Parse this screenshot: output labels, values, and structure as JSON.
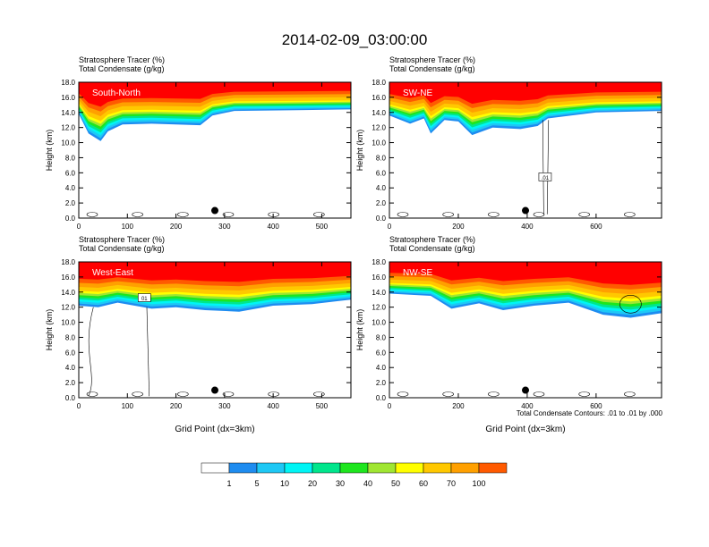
{
  "title": "2014-02-09_03:00:00",
  "colors": {
    "levels": [
      "#ffffff",
      "#1e8cf0",
      "#1ec8f5",
      "#00f5f5",
      "#00e68c",
      "#1ee61e",
      "#a0e632",
      "#ffff00",
      "#ffc800",
      "#ffa000",
      "#ff5a00",
      "#ff0000"
    ],
    "panel_label": "#ffffff",
    "contour": "#000000"
  },
  "colorbar": {
    "labels": [
      "1",
      "5",
      "10",
      "20",
      "30",
      "40",
      "50",
      "60",
      "70",
      "100"
    ]
  },
  "contour_note": "Total Condensate Contours: .01 to .01 by .000",
  "chart_data": [
    {
      "type": "heatmap",
      "subtitle_line1": "Stratosphere Tracer   (%)",
      "subtitle_line2": "Total Condensate   (g/kg)",
      "panel_label": "South-North",
      "ylabel": "Height (km)",
      "xlabel": "",
      "xlim": [
        0,
        560
      ],
      "ylim": [
        0,
        18
      ],
      "xticks": [
        0,
        100,
        200,
        300,
        400,
        500
      ],
      "xticklabels": [
        "0",
        "100",
        "200",
        "300",
        "400",
        "500"
      ],
      "yticks": [
        0,
        2,
        4,
        6,
        8,
        10,
        12,
        14,
        16,
        18
      ],
      "yticklabels": [
        "0.0",
        "2.0",
        "4.0",
        "6.0",
        "8.0",
        "10.0",
        "12.0",
        "14.0",
        "16.0",
        "18.0"
      ],
      "marker_x": 280,
      "marker_y": 1.0,
      "contour_label": "",
      "profile": [
        {
          "x": 0,
          "base": 13.8
        },
        {
          "x": 20,
          "base": 11.2
        },
        {
          "x": 45,
          "base": 10.2
        },
        {
          "x": 60,
          "base": 11.5
        },
        {
          "x": 90,
          "base": 12.4
        },
        {
          "x": 150,
          "base": 12.5
        },
        {
          "x": 250,
          "base": 12.3
        },
        {
          "x": 275,
          "base": 13.6
        },
        {
          "x": 320,
          "base": 14.2
        },
        {
          "x": 450,
          "base": 14.3
        },
        {
          "x": 560,
          "base": 14.4
        }
      ]
    },
    {
      "type": "heatmap",
      "subtitle_line1": "Stratosphere Tracer   (%)",
      "subtitle_line2": "Total Condensate   (g/kg)",
      "panel_label": "SW-NE",
      "ylabel": "Height (km)",
      "xlabel": "",
      "xlim": [
        0,
        790
      ],
      "ylim": [
        0,
        18
      ],
      "xticks": [
        0,
        200,
        400,
        600
      ],
      "xticklabels": [
        "0",
        "200",
        "400",
        "600"
      ],
      "yticks": [
        0,
        2,
        4,
        6,
        8,
        10,
        12,
        14,
        16,
        18
      ],
      "yticklabels": [
        "0.0",
        "2.0",
        "4.0",
        "6.0",
        "8.0",
        "10.0",
        "12.0",
        "14.0",
        "16.0",
        "18.0"
      ],
      "marker_x": 395,
      "marker_y": 1.0,
      "contour_label": ".01",
      "profile": [
        {
          "x": 0,
          "base": 13.6
        },
        {
          "x": 60,
          "base": 12.5
        },
        {
          "x": 100,
          "base": 13.2
        },
        {
          "x": 120,
          "base": 11.2
        },
        {
          "x": 160,
          "base": 13.0
        },
        {
          "x": 200,
          "base": 12.8
        },
        {
          "x": 240,
          "base": 11.0
        },
        {
          "x": 300,
          "base": 12.0
        },
        {
          "x": 380,
          "base": 11.8
        },
        {
          "x": 430,
          "base": 12.2
        },
        {
          "x": 460,
          "base": 13.2
        },
        {
          "x": 600,
          "base": 14.0
        },
        {
          "x": 790,
          "base": 14.2
        }
      ]
    },
    {
      "type": "heatmap",
      "subtitle_line1": "Stratosphere Tracer   (%)",
      "subtitle_line2": "Total Condensate   (g/kg)",
      "panel_label": "West-East",
      "ylabel": "Height (km)",
      "xlabel": "Grid Point (dx=3km)",
      "xlim": [
        0,
        560
      ],
      "ylim": [
        0,
        18
      ],
      "xticks": [
        0,
        100,
        200,
        300,
        400,
        500
      ],
      "xticklabels": [
        "0",
        "100",
        "200",
        "300",
        "400",
        "500"
      ],
      "yticks": [
        0,
        2,
        4,
        6,
        8,
        10,
        12,
        14,
        16,
        18
      ],
      "yticklabels": [
        "0.0",
        "2.0",
        "4.0",
        "6.0",
        "8.0",
        "10.0",
        "12.0",
        "14.0",
        "16.0",
        "18.0"
      ],
      "marker_x": 280,
      "marker_y": 1.0,
      "contour_label": "01",
      "profile": [
        {
          "x": 0,
          "base": 12.2
        },
        {
          "x": 40,
          "base": 12.0
        },
        {
          "x": 80,
          "base": 12.6
        },
        {
          "x": 150,
          "base": 11.8
        },
        {
          "x": 200,
          "base": 12.0
        },
        {
          "x": 260,
          "base": 11.6
        },
        {
          "x": 330,
          "base": 11.4
        },
        {
          "x": 400,
          "base": 12.2
        },
        {
          "x": 480,
          "base": 12.4
        },
        {
          "x": 560,
          "base": 13.0
        }
      ]
    },
    {
      "type": "heatmap",
      "subtitle_line1": "Stratosphere Tracer   (%)",
      "subtitle_line2": "Total Condensate   (g/kg)",
      "panel_label": "NW-SE",
      "ylabel": "Height (km)",
      "xlabel": "Grid Point (dx=3km)",
      "xlim": [
        0,
        790
      ],
      "ylim": [
        0,
        18
      ],
      "xticks": [
        0,
        200,
        400,
        600
      ],
      "xticklabels": [
        "0",
        "200",
        "400",
        "600"
      ],
      "yticks": [
        0,
        2,
        4,
        6,
        8,
        10,
        12,
        14,
        16,
        18
      ],
      "yticklabels": [
        "0.0",
        "2.0",
        "4.0",
        "6.0",
        "8.0",
        "10.0",
        "12.0",
        "14.0",
        "16.0",
        "18.0"
      ],
      "marker_x": 395,
      "marker_y": 1.0,
      "contour_label": "",
      "profile": [
        {
          "x": 0,
          "base": 13.8
        },
        {
          "x": 120,
          "base": 13.5
        },
        {
          "x": 180,
          "base": 11.8
        },
        {
          "x": 260,
          "base": 12.5
        },
        {
          "x": 330,
          "base": 11.6
        },
        {
          "x": 420,
          "base": 12.2
        },
        {
          "x": 520,
          "base": 12.6
        },
        {
          "x": 620,
          "base": 11.0
        },
        {
          "x": 700,
          "base": 10.6
        },
        {
          "x": 790,
          "base": 11.2
        }
      ]
    }
  ]
}
